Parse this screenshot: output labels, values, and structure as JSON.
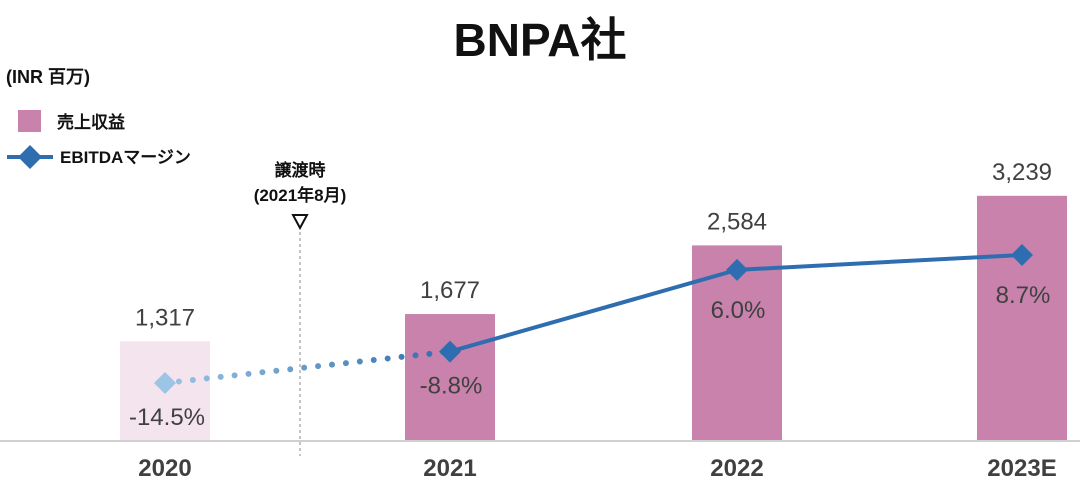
{
  "chart_data": {
    "type": "bar+line",
    "title": "BNPA社",
    "unit_label": "(INR 百万)",
    "categories": [
      "2020",
      "2021",
      "2022",
      "2023E"
    ],
    "series": [
      {
        "name": "売上収益",
        "type": "bar",
        "values": [
          1317,
          1677,
          2584,
          3239
        ],
        "labels": [
          "1,317",
          "1,677",
          "2,584",
          "3,239"
        ],
        "color": "#c882ac",
        "faded_color": "#f3e4ee"
      },
      {
        "name": "EBITDAマージン",
        "type": "line",
        "values": [
          -14.5,
          -8.8,
          6.0,
          8.7
        ],
        "labels": [
          "-14.5%",
          "-8.8%",
          "6.0%",
          "8.7%"
        ],
        "color": "#2e6eb0",
        "faded_color": "#9cc4e4"
      }
    ],
    "annotation": {
      "line1": "譲渡時",
      "line2": "(2021年8月)",
      "position_between": [
        "2020",
        "2021"
      ]
    },
    "legend": "top-left",
    "grid": false
  }
}
